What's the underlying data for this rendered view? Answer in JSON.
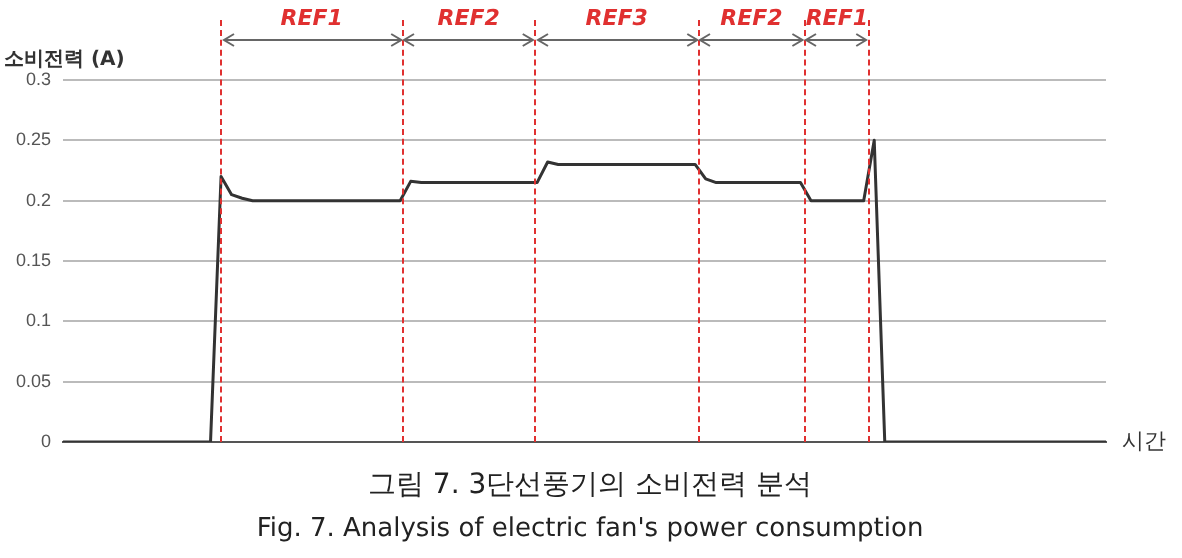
{
  "chart_data": {
    "type": "line",
    "title": "그림 7. 3단선풍기의 소비전력 분석",
    "subtitle": "Fig. 7. Analysis of electric fan's power consumption",
    "ylabel": "소비전력 (A)",
    "xlabel": "시간",
    "categories": [
      null,
      null,
      null,
      null,
      null,
      null,
      null,
      null,
      null,
      null,
      null,
      null,
      null,
      null,
      null,
      null,
      null,
      null,
      null,
      null,
      null,
      null,
      null,
      null,
      null,
      null,
      null,
      null,
      null,
      null,
      null,
      null,
      null,
      null,
      null,
      null,
      null,
      null,
      null,
      null,
      null,
      null,
      null,
      null,
      null,
      null,
      null,
      null,
      null,
      null,
      null,
      null,
      null,
      null,
      null,
      null,
      null,
      null,
      null,
      null,
      null,
      null,
      null,
      null,
      null,
      null,
      null,
      null,
      null,
      null,
      null,
      null,
      null,
      null,
      null,
      null,
      null,
      null,
      null,
      null,
      null,
      null,
      null,
      null,
      null,
      null,
      null,
      null,
      null,
      null,
      null,
      null,
      null,
      null,
      null,
      null,
      null,
      null,
      null,
      null
    ],
    "ylim": [
      0,
      0.3
    ],
    "yticks": [
      0,
      0.05,
      0.1,
      0.15,
      0.2,
      0.25,
      0.3
    ],
    "tick_labels": "y",
    "grid": "y",
    "marker": "none",
    "line_style": "solid",
    "annotations": [
      "REF1",
      "REF2",
      "REF3",
      "REF2",
      "REF1"
    ],
    "series": [
      {
        "color": "#333333",
        "values": [
          0,
          0,
          0,
          0,
          0,
          0,
          0,
          0,
          0,
          0,
          0,
          0,
          0,
          0,
          0,
          0.22,
          0.205,
          0.202,
          0.2,
          0.2,
          0.2,
          0.2,
          0.2,
          0.2,
          0.2,
          0.2,
          0.2,
          0.2,
          0.2,
          0.2,
          0.2,
          0.2,
          0.2,
          0.216,
          0.215,
          0.215,
          0.215,
          0.215,
          0.215,
          0.215,
          0.215,
          0.215,
          0.215,
          0.215,
          0.215,
          0.215,
          0.232,
          0.23,
          0.23,
          0.23,
          0.23,
          0.23,
          0.23,
          0.23,
          0.23,
          0.23,
          0.23,
          0.23,
          0.23,
          0.23,
          0.23,
          0.218,
          0.215,
          0.215,
          0.215,
          0.215,
          0.215,
          0.215,
          0.215,
          0.215,
          0.215,
          0.2,
          0.2,
          0.2,
          0.2,
          0.2,
          0.2,
          0.25,
          0,
          0,
          0,
          0,
          0,
          0,
          0,
          0,
          0,
          0,
          0,
          0,
          0,
          0,
          0,
          0,
          0,
          0,
          0,
          0,
          0,
          0
        ]
      }
    ]
  }
}
